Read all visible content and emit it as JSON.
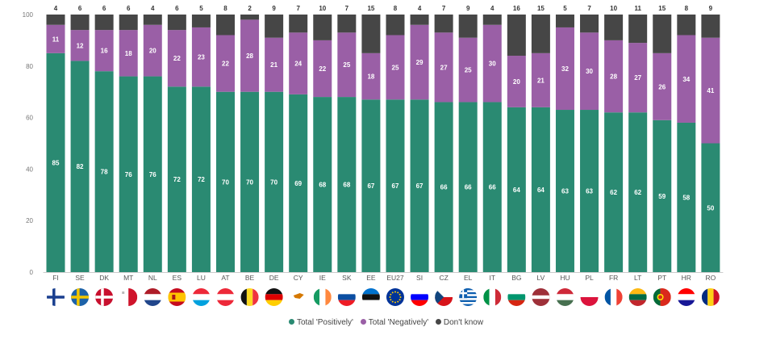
{
  "chart_data": {
    "type": "bar",
    "stacked": true,
    "categories": [
      "FI",
      "SE",
      "DK",
      "MT",
      "NL",
      "ES",
      "LU",
      "AT",
      "BE",
      "DE",
      "CY",
      "IE",
      "SK",
      "EE",
      "EU27",
      "SI",
      "CZ",
      "EL",
      "IT",
      "BG",
      "LV",
      "HU",
      "PL",
      "FR",
      "LT",
      "PT",
      "HR",
      "RO"
    ],
    "series": [
      {
        "name": "Total 'Positively'",
        "color": "#2a8a72",
        "values": [
          85,
          82,
          78,
          76,
          76,
          72,
          72,
          70,
          70,
          70,
          69,
          68,
          68,
          67,
          67,
          67,
          66,
          66,
          66,
          64,
          64,
          63,
          63,
          62,
          62,
          59,
          58,
          50
        ]
      },
      {
        "name": "Total 'Negatively'",
        "color": "#9a5fa6",
        "values": [
          11,
          12,
          16,
          18,
          20,
          22,
          23,
          22,
          28,
          21,
          24,
          22,
          25,
          18,
          25,
          29,
          27,
          25,
          30,
          20,
          21,
          32,
          30,
          28,
          27,
          26,
          34,
          41
        ]
      },
      {
        "name": "Don't know",
        "color": "#464646",
        "values": [
          4,
          6,
          6,
          6,
          4,
          6,
          5,
          8,
          2,
          9,
          7,
          10,
          7,
          15,
          8,
          4,
          7,
          9,
          4,
          16,
          15,
          5,
          7,
          10,
          11,
          15,
          8,
          9
        ]
      }
    ],
    "ylim": [
      0,
      100
    ],
    "yticks": [
      0,
      20,
      40,
      60,
      80,
      100
    ],
    "grid": false,
    "legend_position": "bottom"
  },
  "flags": [
    {
      "kind": "nordic",
      "colors": [
        "#ffffff",
        "#1a3f8f"
      ]
    },
    {
      "kind": "nordic",
      "colors": [
        "#1c62a8",
        "#f2c500"
      ]
    },
    {
      "kind": "nordic",
      "colors": [
        "#c8102e",
        "#ffffff"
      ]
    },
    {
      "kind": "vbi",
      "colors": [
        "#ffffff",
        "#cf142b"
      ]
    },
    {
      "kind": "htri",
      "colors": [
        "#ae1c28",
        "#ffffff",
        "#21468b"
      ]
    },
    {
      "kind": "hspain",
      "colors": [
        "#c60b1e",
        "#ffc400",
        "#c60b1e"
      ]
    },
    {
      "kind": "htri",
      "colors": [
        "#ed2939",
        "#ffffff",
        "#00a1de"
      ]
    },
    {
      "kind": "htri",
      "colors": [
        "#ed2939",
        "#ffffff",
        "#ed2939"
      ]
    },
    {
      "kind": "vtri",
      "colors": [
        "#111111",
        "#fdda24",
        "#ef3340"
      ]
    },
    {
      "kind": "htri",
      "colors": [
        "#111111",
        "#dd0000",
        "#ffce00"
      ]
    },
    {
      "kind": "cyprus",
      "colors": [
        "#ffffff",
        "#d57800"
      ]
    },
    {
      "kind": "vtri",
      "colors": [
        "#169b62",
        "#ffffff",
        "#ff883e"
      ]
    },
    {
      "kind": "htri",
      "colors": [
        "#ffffff",
        "#0b4ea2",
        "#ee1c25"
      ]
    },
    {
      "kind": "htri",
      "colors": [
        "#0072ce",
        "#111111",
        "#ffffff"
      ]
    },
    {
      "kind": "eu",
      "colors": [
        "#003399",
        "#ffcc00"
      ]
    },
    {
      "kind": "htri",
      "colors": [
        "#ffffff",
        "#0000ff",
        "#ff0000"
      ]
    },
    {
      "kind": "czech",
      "colors": [
        "#ffffff",
        "#d7141a",
        "#11457e"
      ]
    },
    {
      "kind": "greece",
      "colors": [
        "#0d5eaf",
        "#ffffff"
      ]
    },
    {
      "kind": "vtri",
      "colors": [
        "#009246",
        "#ffffff",
        "#ce2b37"
      ]
    },
    {
      "kind": "htri",
      "colors": [
        "#ffffff",
        "#00966e",
        "#d62612"
      ]
    },
    {
      "kind": "latvia",
      "colors": [
        "#9e3039",
        "#ffffff"
      ]
    },
    {
      "kind": "htri",
      "colors": [
        "#ce2939",
        "#ffffff",
        "#477050"
      ]
    },
    {
      "kind": "hbi",
      "colors": [
        "#ffffff",
        "#dc143c"
      ]
    },
    {
      "kind": "vtri",
      "colors": [
        "#0055a4",
        "#ffffff",
        "#ef4135"
      ]
    },
    {
      "kind": "htri",
      "colors": [
        "#fdb913",
        "#006a44",
        "#c1272d"
      ]
    },
    {
      "kind": "portugal",
      "colors": [
        "#046a38",
        "#da291c",
        "#ffe900"
      ]
    },
    {
      "kind": "htri",
      "colors": [
        "#ff0000",
        "#ffffff",
        "#171796"
      ]
    },
    {
      "kind": "vtri",
      "colors": [
        "#002b7f",
        "#fcd116",
        "#ce1126"
      ]
    }
  ],
  "legend": [
    {
      "label": "Total 'Positively'",
      "color": "#2a8a72"
    },
    {
      "label": "Total 'Negatively'",
      "color": "#9a5fa6"
    },
    {
      "label": "Don't know",
      "color": "#464646"
    }
  ]
}
